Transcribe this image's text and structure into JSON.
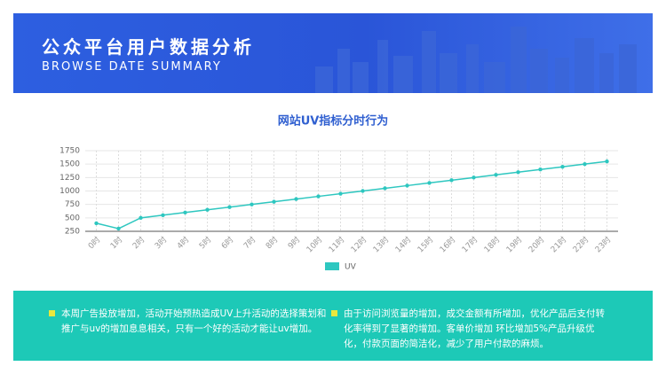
{
  "header": {
    "title": "公众平台用户数据分析",
    "subtitle": "BROWSE DATE SUMMARY"
  },
  "chart_data": {
    "type": "line",
    "title": "网站UV指标分时行为",
    "categories": [
      "0时",
      "1时",
      "2时",
      "3时",
      "4时",
      "5时",
      "6时",
      "7时",
      "8时",
      "9时",
      "10时",
      "11时",
      "12时",
      "13时",
      "14时",
      "15时",
      "16时",
      "17时",
      "18时",
      "19时",
      "20时",
      "21时",
      "22时",
      "23时"
    ],
    "series": [
      {
        "name": "UV",
        "color": "#2ec7c0",
        "values": [
          400,
          300,
          500,
          550,
          600,
          650,
          700,
          750,
          800,
          850,
          900,
          950,
          1000,
          1050,
          1100,
          1150,
          1200,
          1250,
          1300,
          1350,
          1400,
          1450,
          1500,
          1550
        ]
      }
    ],
    "ylim": [
      250,
      1750
    ],
    "yticks": [
      250,
      500,
      750,
      1000,
      1250,
      1500,
      1750
    ],
    "grid": true
  },
  "notes": [
    "本周广告投放增加，活动开始预热造成UV上升活动的选择策划和推广与uv的增加息息相关，只有一个好的活动才能让uv增加。",
    "由于访问浏览量的增加，成交金额有所增加，优化产品后支付转化率得到了显著的增加。客单价增加 环比增加5%产品升级优化，付款页面的简洁化，减少了用户付款的麻烦。"
  ]
}
